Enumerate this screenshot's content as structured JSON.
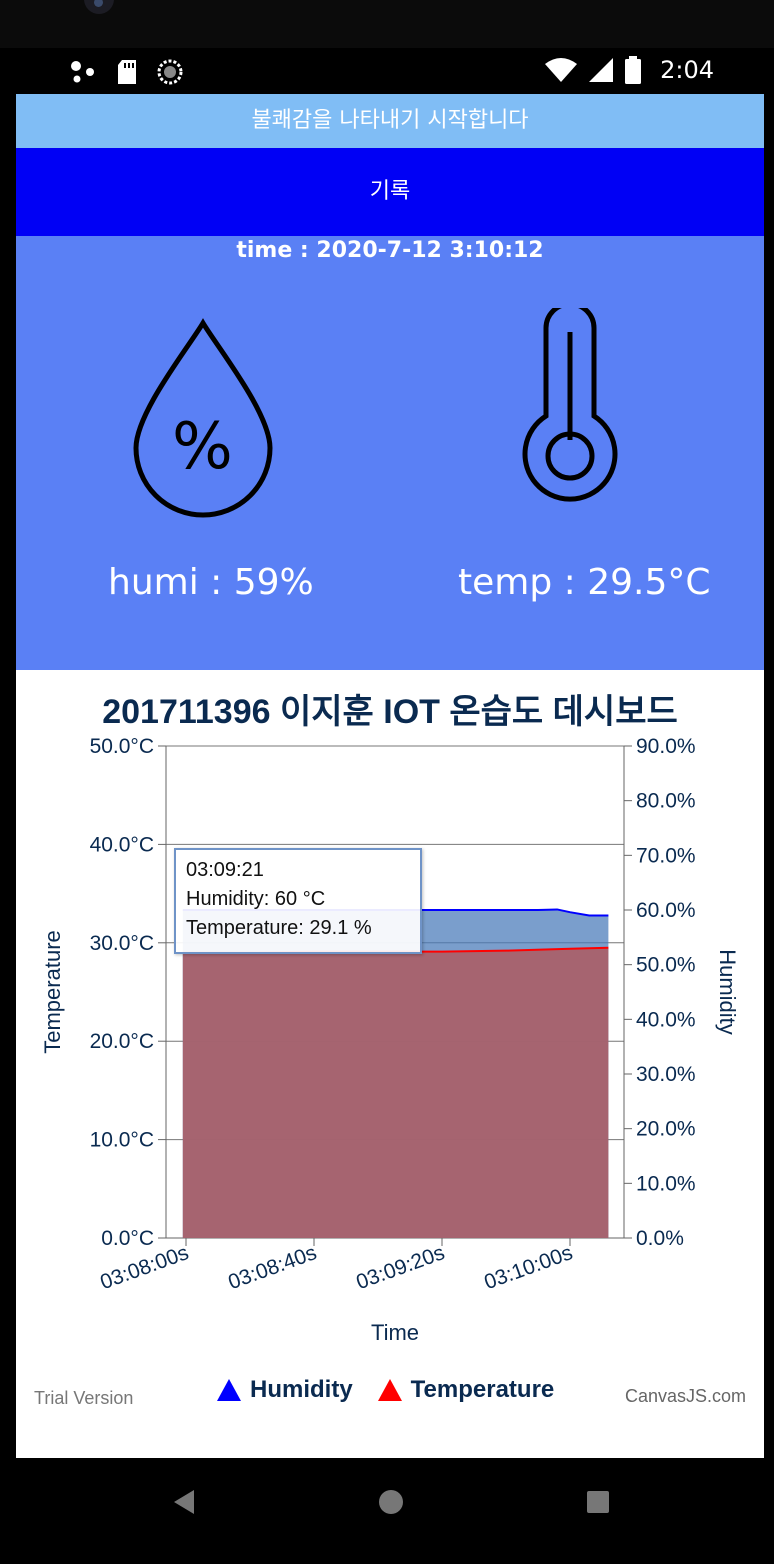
{
  "status_bar": {
    "time": "2:04",
    "icons": [
      "assistant-dots-icon",
      "sd-card-icon",
      "sync-icon",
      "wifi-icon",
      "signal-icon",
      "battery-icon"
    ]
  },
  "notice": {
    "text": "불쾌감을 나타내기 시작합니다",
    "color": "#80bdf5"
  },
  "record_button": {
    "label": "기록",
    "color": "#0000f5"
  },
  "sensor": {
    "time_label": "time : 2020-7-12 3:10:12",
    "humidity_label": "humi : 59%",
    "temperature_label": "temp : 29.5°C",
    "panel_color": "#5a80f5",
    "icons": [
      "humidity-drop-icon",
      "thermometer-icon"
    ]
  },
  "chart_data": {
    "type": "area",
    "title": "201711396 이지훈 IOT 온습도 데시보드",
    "xlabel": "Time",
    "ylabel": "Temperature",
    "y2label": "Humidity",
    "x_ticks": [
      "03:08:00s",
      "03:08:40s",
      "03:09:20s",
      "03:10:00s"
    ],
    "y_ticks": [
      "0.0°C",
      "10.0°C",
      "20.0°C",
      "30.0°C",
      "40.0°C",
      "50.0°C"
    ],
    "y2_ticks": [
      "0.0%",
      "10.0%",
      "20.0%",
      "30.0%",
      "40.0%",
      "50.0%",
      "60.0%",
      "70.0%",
      "80.0%",
      "90.0%"
    ],
    "ylim": [
      0,
      50
    ],
    "y2lim": [
      0,
      90
    ],
    "x_seconds": [
      0,
      40,
      80,
      120
    ],
    "series": [
      {
        "name": "Humidity",
        "axis": "y2",
        "color": "#0000ff",
        "x": [
          -1,
          20,
          40,
          60,
          80,
          100,
          110,
          116,
          120,
          126,
          132
        ],
        "values": [
          60,
          60,
          60,
          60,
          60,
          60,
          60,
          60.1,
          59.6,
          59,
          59
        ]
      },
      {
        "name": "Temperature",
        "axis": "y",
        "color": "#ff0000",
        "x": [
          -1,
          20,
          40,
          60,
          80,
          100,
          120,
          132
        ],
        "values": [
          29.0,
          29.0,
          29.1,
          29.1,
          29.1,
          29.2,
          29.4,
          29.5
        ]
      }
    ],
    "grid": true,
    "legend_position": "bottom",
    "tooltip": {
      "time": "03:09:21",
      "humidity": "Humidity: 60 °C",
      "temperature": "Temperature: 29.1 %"
    },
    "trial_text": "Trial Version",
    "credit_text": "CanvasJS.com"
  }
}
